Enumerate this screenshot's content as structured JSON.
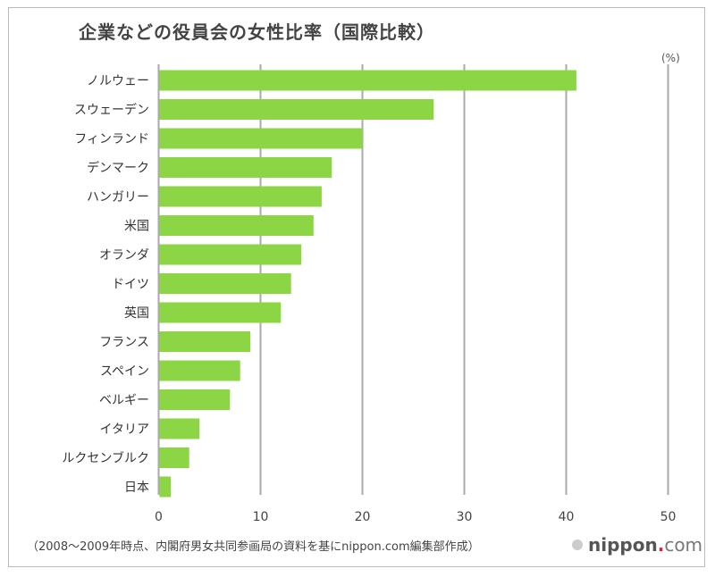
{
  "chart_data": {
    "type": "bar",
    "orientation": "horizontal",
    "title": "企業などの役員会の女性比率（国際比較）",
    "unit_label": "(%)",
    "categories": [
      "ノルウェー",
      "スウェーデン",
      "フィンランド",
      "デンマーク",
      "ハンガリー",
      "米国",
      "オランダ",
      "ドイツ",
      "英国",
      "フランス",
      "スペイン",
      "ベルギー",
      "イタリア",
      "ルクセンブルク",
      "日本"
    ],
    "values": [
      41,
      27,
      20,
      17,
      16,
      15.2,
      14,
      13,
      12,
      9,
      8,
      7,
      4,
      3,
      1.2
    ],
    "xlim": [
      0,
      50
    ],
    "xticks": [
      0,
      10,
      20,
      30,
      40,
      50
    ],
    "grid": true,
    "bar_color": "#8cd646",
    "grid_color": "#aaaaaa"
  },
  "footer": {
    "source": "（2008〜2009年時点、内閣府男女共同参画局の資料を基にnippon.com編集部作成）",
    "logo_main": "nippon",
    "logo_dot": ".",
    "logo_com": "com"
  }
}
